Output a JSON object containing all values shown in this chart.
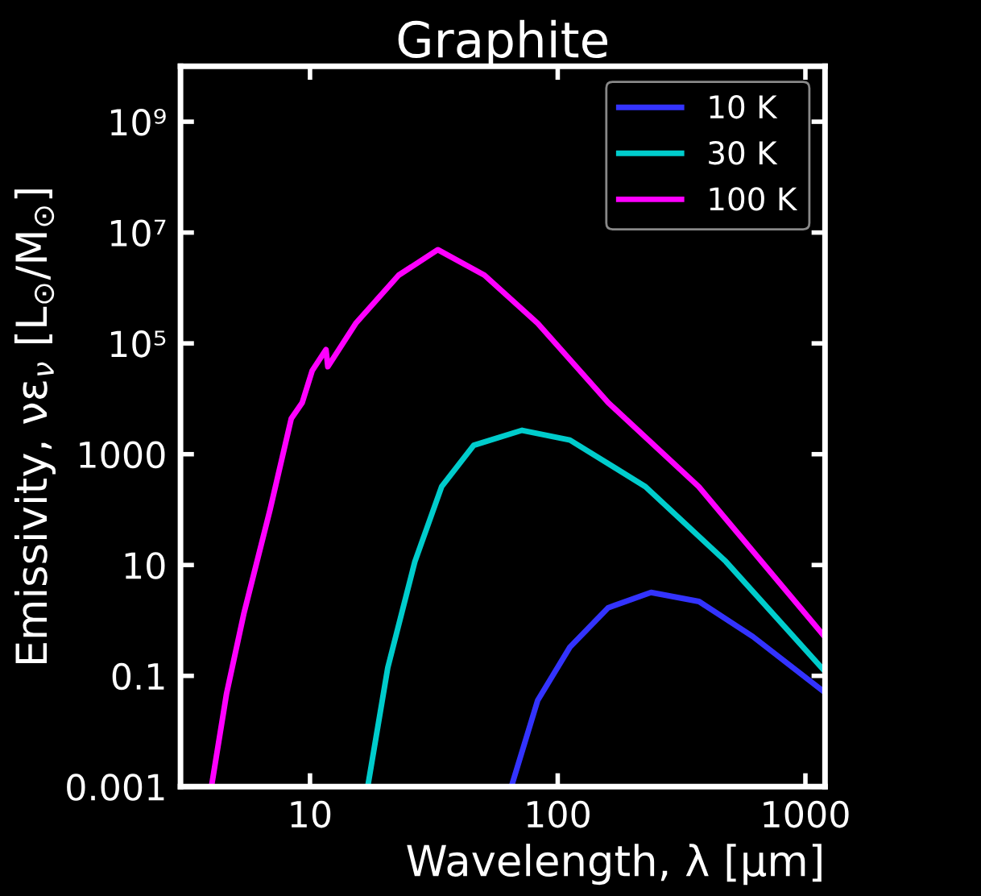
{
  "chart_data": {
    "type": "line",
    "title": "Graphite",
    "xlabel": "Wavelength, λ [μm]",
    "ylabel": "Emissivity, νε$_{ν}$ [L$_{⊙}$/M$_{⊙}$]",
    "log": "xy",
    "xlim": [
      3,
      1200
    ],
    "ylim": [
      0.001,
      10000000000
    ],
    "xticks": [
      10,
      100,
      1000
    ],
    "yticks": [
      {
        "value": 1000000000,
        "label": "10⁹"
      },
      {
        "value": 10000000,
        "label": "10⁷"
      },
      {
        "value": 100000,
        "label": "10⁵"
      },
      1000,
      10,
      0.1,
      0.001
    ],
    "grid": false,
    "legend": "top right",
    "series": [
      {
        "name": "10 K",
        "color": "#3333ff",
        "x": [
          65,
          83,
          112,
          160,
          238,
          372,
          614,
          1200
        ],
        "values": [
          0.001,
          0.036,
          0.33,
          1.7,
          3.2,
          2.2,
          0.51,
          0.05
        ]
      },
      {
        "name": "30 K",
        "color": "#00cccc",
        "x": [
          17.1,
          20.6,
          26.5,
          34,
          45.8,
          71.8,
          112,
          226,
          478,
          1200
        ],
        "values": [
          0.001,
          0.14,
          11.5,
          260,
          1450,
          2700,
          1800,
          260,
          11.5,
          0.12
        ]
      },
      {
        "name": "100 K",
        "color": "#ff00ff",
        "x": [
          4.0,
          4.6,
          5.4,
          6.9,
          8.4,
          9.3,
          10.2,
          11.6,
          11.8,
          15.3,
          22.8,
          32.8,
          50.6,
          83,
          160,
          371,
          1200
        ],
        "values": [
          0.001,
          0.047,
          1.3,
          100,
          4400,
          8500,
          32000,
          77000,
          38000,
          230000,
          1700000,
          4900000,
          1700000,
          230000,
          8500,
          260,
          0.5
        ]
      }
    ]
  }
}
